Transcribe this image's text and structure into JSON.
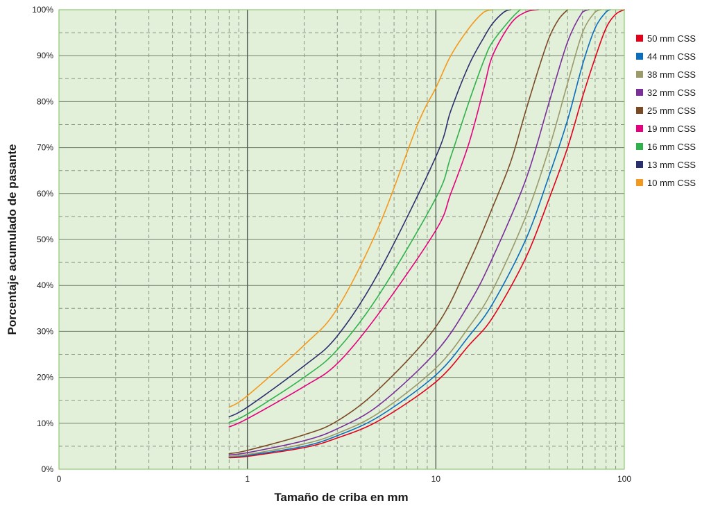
{
  "chart_data": {
    "type": "line",
    "xlabel": "Tamaño de criba en mm",
    "ylabel": "Porcentaje acumulado de pasante",
    "x_scale": "log",
    "x_ticks": [
      {
        "value": 0.1,
        "label": "0"
      },
      {
        "value": 1,
        "label": "1"
      },
      {
        "value": 10,
        "label": "10"
      },
      {
        "value": 100,
        "label": "100"
      }
    ],
    "y_ticks": [
      "0%",
      "10%",
      "20%",
      "30%",
      "40%",
      "50%",
      "60%",
      "70%",
      "80%",
      "90%",
      "100%"
    ],
    "xlim": [
      0.1,
      100
    ],
    "ylim": [
      0,
      100
    ],
    "grid": true,
    "plot_background": "#e2efd9",
    "legend_position": "right",
    "series": [
      {
        "name": "50 mm CSS",
        "color": "#e3001b",
        "points": [
          [
            0.8,
            2.5
          ],
          [
            1,
            2.8
          ],
          [
            2,
            4.7
          ],
          [
            3,
            6.8
          ],
          [
            5,
            10.6
          ],
          [
            10,
            19
          ],
          [
            15,
            27
          ],
          [
            20,
            33
          ],
          [
            30,
            46
          ],
          [
            40,
            59
          ],
          [
            50,
            70
          ],
          [
            60,
            81
          ],
          [
            70,
            89.5
          ],
          [
            80,
            96
          ],
          [
            90,
            99
          ],
          [
            100,
            100
          ]
        ]
      },
      {
        "name": "44 mm CSS",
        "color": "#0a6ebd",
        "points": [
          [
            0.8,
            2.7
          ],
          [
            1,
            3.0
          ],
          [
            2,
            5.0
          ],
          [
            3,
            7.3
          ],
          [
            5,
            11.5
          ],
          [
            10,
            20.5
          ],
          [
            15,
            29
          ],
          [
            20,
            36
          ],
          [
            30,
            50
          ],
          [
            40,
            64
          ],
          [
            50,
            76
          ],
          [
            60,
            88
          ],
          [
            70,
            96
          ],
          [
            80,
            99.5
          ],
          [
            84,
            100
          ]
        ]
      },
      {
        "name": "38 mm CSS",
        "color": "#9a9a6a",
        "points": [
          [
            0.8,
            2.8
          ],
          [
            1,
            3.2
          ],
          [
            2,
            5.5
          ],
          [
            3,
            7.8
          ],
          [
            5,
            12.3
          ],
          [
            10,
            22
          ],
          [
            15,
            31
          ],
          [
            20,
            39
          ],
          [
            30,
            55
          ],
          [
            40,
            70
          ],
          [
            50,
            84
          ],
          [
            60,
            95
          ],
          [
            70,
            99.5
          ],
          [
            75,
            100
          ]
        ]
      },
      {
        "name": "32 mm CSS",
        "color": "#7a2f9a",
        "points": [
          [
            0.8,
            3.1
          ],
          [
            1,
            3.6
          ],
          [
            2,
            6.2
          ],
          [
            3,
            8.8
          ],
          [
            5,
            14
          ],
          [
            10,
            25.5
          ],
          [
            15,
            36
          ],
          [
            20,
            46
          ],
          [
            30,
            63
          ],
          [
            40,
            80
          ],
          [
            50,
            93
          ],
          [
            60,
            99.5
          ],
          [
            65,
            100
          ]
        ]
      },
      {
        "name": "25 mm CSS",
        "color": "#7a4a25",
        "points": [
          [
            0.8,
            3.4
          ],
          [
            1,
            4.1
          ],
          [
            2,
            7.5
          ],
          [
            3,
            10.5
          ],
          [
            5,
            17.5
          ],
          [
            10,
            31
          ],
          [
            15,
            45
          ],
          [
            20,
            57
          ],
          [
            25,
            67
          ],
          [
            30,
            78
          ],
          [
            35,
            87
          ],
          [
            40,
            94
          ],
          [
            45,
            98
          ],
          [
            50,
            100
          ]
        ]
      },
      {
        "name": "19 mm CSS",
        "color": "#e5007e",
        "points": [
          [
            0.8,
            9.2
          ],
          [
            1,
            11
          ],
          [
            2,
            18
          ],
          [
            3,
            23
          ],
          [
            5,
            34
          ],
          [
            10,
            52
          ],
          [
            12,
            60
          ],
          [
            15,
            71
          ],
          [
            18,
            83
          ],
          [
            20,
            90
          ],
          [
            25,
            97
          ],
          [
            30,
            99.5
          ],
          [
            35,
            100
          ]
        ]
      },
      {
        "name": "16 mm CSS",
        "color": "#2fb14b",
        "points": [
          [
            0.8,
            10.2
          ],
          [
            1,
            12
          ],
          [
            2,
            20
          ],
          [
            3,
            26
          ],
          [
            5,
            38
          ],
          [
            10,
            59
          ],
          [
            12,
            68
          ],
          [
            15,
            80
          ],
          [
            18,
            89
          ],
          [
            20,
            93
          ],
          [
            25,
            98
          ],
          [
            28,
            100
          ]
        ]
      },
      {
        "name": "13 mm CSS",
        "color": "#2a2f6e",
        "points": [
          [
            0.8,
            11.4
          ],
          [
            1,
            13.5
          ],
          [
            2,
            22.5
          ],
          [
            3,
            29
          ],
          [
            5,
            43
          ],
          [
            10,
            68
          ],
          [
            12,
            78
          ],
          [
            15,
            88
          ],
          [
            18,
            94
          ],
          [
            20,
            97
          ],
          [
            23,
            99.5
          ],
          [
            25,
            100
          ]
        ]
      },
      {
        "name": "10 mm CSS",
        "color": "#f39a1e",
        "points": [
          [
            0.8,
            13.5
          ],
          [
            1,
            16
          ],
          [
            2,
            27
          ],
          [
            3,
            35
          ],
          [
            5,
            53
          ],
          [
            8,
            75
          ],
          [
            10,
            83
          ],
          [
            12,
            90
          ],
          [
            15,
            96
          ],
          [
            18,
            99.5
          ],
          [
            20,
            100
          ]
        ]
      }
    ]
  }
}
